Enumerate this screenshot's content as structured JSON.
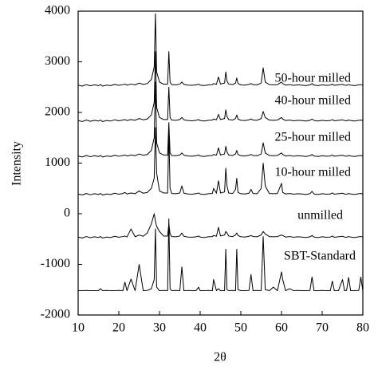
{
  "chart_data": {
    "type": "line",
    "xlabel": "2θ",
    "ylabel": "Intensity",
    "x": [
      10,
      11,
      12,
      13,
      14,
      15,
      15.5,
      16,
      17,
      18,
      19,
      20,
      21,
      21.5,
      22,
      23,
      24,
      25,
      26,
      27,
      28,
      28.7,
      29,
      29.3,
      30,
      31,
      32,
      32.3,
      32.6,
      33,
      34,
      35,
      35.5,
      36,
      37,
      38,
      39,
      39.6,
      40,
      41,
      42,
      43,
      43.3,
      44,
      44.5,
      45,
      46,
      46.3,
      46.6,
      47,
      48,
      48.7,
      49,
      49.3,
      50,
      51,
      52,
      52.5,
      53,
      54,
      55,
      55.5,
      56,
      57,
      58,
      59,
      60,
      60.3,
      61,
      62,
      63,
      64,
      65,
      66,
      67,
      67.5,
      68,
      69,
      70,
      71,
      72,
      72.5,
      73,
      74,
      75,
      75.5,
      76,
      76.5,
      77,
      78,
      79,
      79.5,
      80
    ],
    "xlim": [
      10,
      80
    ],
    "xticks": [
      10,
      20,
      30,
      40,
      50,
      60,
      70,
      80
    ],
    "ylim": [
      -2000,
      4000
    ],
    "yticks": [
      -2000,
      -1000,
      0,
      1000,
      2000,
      3000,
      4000
    ],
    "series": [
      {
        "name": "50-hour milled",
        "color": "#000000",
        "values": [
          2540,
          2520,
          2550,
          2525,
          2545,
          2530,
          2550,
          2520,
          2540,
          2530,
          2555,
          2535,
          2550,
          2560,
          2540,
          2560,
          2545,
          2580,
          2555,
          2570,
          2650,
          2900,
          3950,
          2800,
          2600,
          2560,
          2560,
          3200,
          2600,
          2550,
          2545,
          2560,
          2600,
          2555,
          2540,
          2535,
          2545,
          2560,
          2540,
          2530,
          2545,
          2550,
          2570,
          2555,
          2700,
          2560,
          2580,
          2800,
          2620,
          2560,
          2550,
          2580,
          2680,
          2570,
          2545,
          2540,
          2555,
          2570,
          2550,
          2545,
          2580,
          2880,
          2600,
          2550,
          2545,
          2550,
          2600,
          2570,
          2540,
          2550,
          2535,
          2545,
          2540,
          2530,
          2545,
          2570,
          2540,
          2530,
          2545,
          2535,
          2540,
          2560,
          2535,
          2545,
          2555,
          2540,
          2535,
          2550,
          2540,
          2530,
          2545,
          2550,
          2540
        ]
      },
      {
        "name": "40-hour milled",
        "color": "#000000",
        "values": [
          1840,
          1820,
          1850,
          1825,
          1845,
          1830,
          1850,
          1820,
          1840,
          1830,
          1855,
          1835,
          1850,
          1860,
          1840,
          1860,
          1845,
          1880,
          1855,
          1870,
          1950,
          2200,
          3200,
          2100,
          1900,
          1860,
          1860,
          2500,
          1900,
          1850,
          1845,
          1860,
          1900,
          1855,
          1840,
          1835,
          1845,
          1860,
          1840,
          1830,
          1845,
          1850,
          1870,
          1855,
          1960,
          1860,
          1880,
          2050,
          1920,
          1860,
          1850,
          1880,
          1950,
          1870,
          1845,
          1840,
          1855,
          1870,
          1850,
          1845,
          1880,
          2020,
          1900,
          1850,
          1845,
          1850,
          1900,
          1870,
          1840,
          1850,
          1835,
          1845,
          1840,
          1830,
          1845,
          1870,
          1840,
          1830,
          1845,
          1835,
          1840,
          1860,
          1835,
          1845,
          1855,
          1840,
          1835,
          1850,
          1840,
          1830,
          1845,
          1850,
          1840
        ]
      },
      {
        "name": "25-hour milled",
        "color": "#000000",
        "values": [
          1140,
          1120,
          1150,
          1125,
          1145,
          1130,
          1150,
          1120,
          1140,
          1130,
          1155,
          1135,
          1150,
          1160,
          1140,
          1160,
          1145,
          1180,
          1155,
          1170,
          1250,
          1500,
          2600,
          1400,
          1200,
          1160,
          1160,
          1800,
          1200,
          1150,
          1145,
          1160,
          1200,
          1155,
          1140,
          1135,
          1145,
          1160,
          1140,
          1130,
          1145,
          1150,
          1170,
          1155,
          1300,
          1160,
          1180,
          1330,
          1220,
          1160,
          1150,
          1180,
          1250,
          1170,
          1145,
          1140,
          1155,
          1170,
          1150,
          1145,
          1180,
          1400,
          1200,
          1150,
          1145,
          1150,
          1200,
          1170,
          1140,
          1150,
          1135,
          1145,
          1140,
          1130,
          1145,
          1170,
          1140,
          1130,
          1145,
          1135,
          1140,
          1160,
          1135,
          1145,
          1155,
          1140,
          1135,
          1150,
          1140,
          1130,
          1145,
          1150,
          1140
        ]
      },
      {
        "name": "10-hour milled",
        "color": "#000000",
        "values": [
          390,
          370,
          400,
          375,
          395,
          380,
          400,
          370,
          390,
          380,
          405,
          385,
          400,
          420,
          390,
          410,
          395,
          450,
          405,
          420,
          500,
          700,
          1700,
          800,
          450,
          410,
          410,
          1600,
          500,
          400,
          395,
          410,
          550,
          405,
          390,
          385,
          395,
          410,
          390,
          380,
          395,
          400,
          500,
          405,
          650,
          410,
          430,
          900,
          550,
          410,
          400,
          480,
          700,
          420,
          395,
          390,
          405,
          480,
          400,
          395,
          500,
          1000,
          550,
          400,
          395,
          400,
          600,
          420,
          390,
          400,
          385,
          395,
          390,
          380,
          395,
          440,
          390,
          380,
          395,
          385,
          390,
          410,
          385,
          395,
          405,
          390,
          385,
          400,
          390,
          380,
          395,
          400,
          390
        ]
      },
      {
        "name": "unmilled",
        "color": "#000000",
        "values": [
          -460,
          -480,
          -450,
          -475,
          -455,
          -470,
          -450,
          -480,
          -460,
          -470,
          -445,
          -465,
          -450,
          -440,
          -460,
          -300,
          -455,
          -420,
          -445,
          -380,
          -200,
          0,
          -150,
          -250,
          -350,
          -440,
          -440,
          -200,
          -400,
          -450,
          -455,
          -440,
          -380,
          -445,
          -460,
          -465,
          -455,
          -440,
          -460,
          -470,
          -455,
          -450,
          -430,
          -445,
          -270,
          -440,
          -420,
          -350,
          -380,
          -440,
          -450,
          -420,
          -380,
          -430,
          -455,
          -460,
          -445,
          -430,
          -450,
          -455,
          -420,
          -350,
          -400,
          -450,
          -455,
          -450,
          -420,
          -430,
          -460,
          -450,
          -465,
          -455,
          -460,
          -470,
          -455,
          -430,
          -460,
          -470,
          -455,
          -465,
          -460,
          -440,
          -465,
          -455,
          -445,
          -460,
          -465,
          -450,
          -460,
          -470,
          -455,
          -450,
          -460
        ]
      },
      {
        "name": "SBT-Standard",
        "color": "#000000",
        "values": [
          -1520,
          -1520,
          -1515,
          -1520,
          -1520,
          -1520,
          -1480,
          -1520,
          -1515,
          -1520,
          -1520,
          -1515,
          -1520,
          -1350,
          -1520,
          -1290,
          -1520,
          -1000,
          -1520,
          -1515,
          -1480,
          -1300,
          -300,
          -1450,
          -1520,
          -1515,
          -1520,
          -100,
          -1480,
          -1520,
          -1515,
          -1520,
          -1050,
          -1520,
          -1515,
          -1520,
          -1520,
          -1450,
          -1520,
          -1520,
          -1515,
          -1520,
          -1300,
          -1520,
          -1480,
          -1520,
          -1520,
          -700,
          -1500,
          -1520,
          -1515,
          -1520,
          -700,
          -1500,
          -1520,
          -1520,
          -1515,
          -1200,
          -1520,
          -1515,
          -1520,
          -450,
          -1500,
          -1520,
          -1450,
          -1520,
          -1150,
          -1300,
          -1520,
          -1480,
          -1520,
          -1515,
          -1520,
          -1520,
          -1515,
          -1250,
          -1520,
          -1520,
          -1515,
          -1520,
          -1520,
          -1330,
          -1520,
          -1520,
          -1300,
          -1520,
          -1515,
          -1260,
          -1520,
          -1520,
          -1515,
          -1250,
          -1520
        ]
      }
    ]
  }
}
